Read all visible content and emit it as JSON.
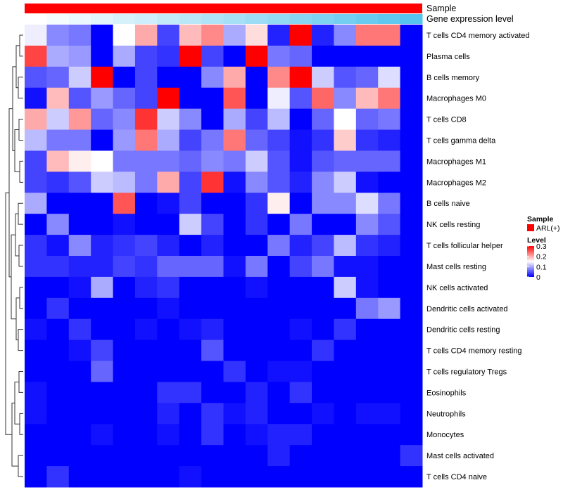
{
  "chart_data": {
    "type": "heatmap",
    "title": "",
    "annotation_bars": [
      {
        "label": "Sample",
        "color": "#ff0000"
      },
      {
        "label": "Gene expression level",
        "color_from": "#ffffff",
        "color_to": "#56c4ee"
      }
    ],
    "rows": [
      "T cells CD4 memory activated",
      "Plasma cells",
      "B cells memory",
      "Macrophages M0",
      "T cells CD8",
      "T cells gamma delta",
      "Macrophages M1",
      "Macrophages M2",
      "B cells naive",
      "NK cells resting",
      "T cells follicular helper",
      "Mast cells resting",
      "NK cells activated",
      "Dendritic cells activated",
      "Dendritic cells resting",
      "T cells CD4 memory resting",
      "T cells regulatory  Tregs",
      "Eosinophils",
      "Neutrophils",
      "Monocytes",
      "Mast cells activated",
      "T cells CD4 naive"
    ],
    "n_columns": 18,
    "values": [
      [
        0.14,
        0.08,
        0.07,
        0.0,
        0.15,
        0.2,
        0.04,
        0.19,
        0.22,
        0.1,
        0.17,
        0.02,
        0.3,
        0.02,
        0.08,
        0.23,
        0.23,
        0.0
      ],
      [
        0.26,
        0.1,
        0.09,
        0.0,
        0.1,
        0.04,
        0.03,
        0.3,
        0.04,
        0.0,
        0.3,
        0.07,
        0.06,
        0.0,
        0.0,
        0.0,
        0.0,
        0.0
      ],
      [
        0.05,
        0.06,
        0.12,
        0.3,
        0.0,
        0.04,
        0.0,
        0.0,
        0.08,
        0.2,
        0.0,
        0.22,
        0.3,
        0.12,
        0.05,
        0.06,
        0.13,
        0.0
      ],
      [
        0.01,
        0.19,
        0.05,
        0.09,
        0.06,
        0.04,
        0.3,
        0.0,
        0.0,
        0.25,
        0.0,
        0.14,
        0.05,
        0.24,
        0.08,
        0.19,
        0.23,
        0.0
      ],
      [
        0.2,
        0.12,
        0.21,
        0.06,
        0.08,
        0.27,
        0.12,
        0.08,
        0.0,
        0.1,
        0.04,
        0.11,
        0.0,
        0.06,
        0.15,
        0.06,
        0.07,
        0.0
      ],
      [
        0.11,
        0.07,
        0.07,
        0.0,
        0.09,
        0.23,
        0.1,
        0.04,
        0.07,
        0.23,
        0.06,
        0.04,
        0.01,
        0.03,
        0.18,
        0.03,
        0.02,
        0.0
      ],
      [
        0.04,
        0.19,
        0.16,
        0.15,
        0.07,
        0.07,
        0.07,
        0.06,
        0.08,
        0.07,
        0.12,
        0.05,
        0.01,
        0.05,
        0.06,
        0.06,
        0.06,
        0.0
      ],
      [
        0.04,
        0.03,
        0.05,
        0.12,
        0.11,
        0.07,
        0.2,
        0.04,
        0.27,
        0.01,
        0.08,
        0.05,
        0.02,
        0.08,
        0.12,
        0.01,
        0.0,
        0.0
      ],
      [
        0.1,
        0.0,
        0.0,
        0.0,
        0.25,
        0.0,
        0.01,
        0.04,
        0.0,
        0.0,
        0.03,
        0.16,
        0.0,
        0.08,
        0.08,
        0.13,
        0.07,
        0.0
      ],
      [
        0.0,
        0.08,
        0.0,
        0.0,
        0.01,
        0.0,
        0.0,
        0.12,
        0.04,
        0.0,
        0.03,
        0.0,
        0.07,
        0.0,
        0.0,
        0.08,
        0.05,
        0.0
      ],
      [
        0.03,
        0.01,
        0.08,
        0.02,
        0.03,
        0.04,
        0.02,
        0.0,
        0.02,
        0.0,
        0.0,
        0.07,
        0.02,
        0.04,
        0.11,
        0.03,
        0.02,
        0.0
      ],
      [
        0.03,
        0.03,
        0.02,
        0.02,
        0.04,
        0.03,
        0.06,
        0.06,
        0.06,
        0.01,
        0.07,
        0.0,
        0.04,
        0.07,
        0.01,
        0.01,
        0.0,
        0.0
      ],
      [
        0.0,
        0.0,
        0.01,
        0.1,
        0.0,
        0.02,
        0.03,
        0.0,
        0.0,
        0.0,
        0.01,
        0.0,
        0.0,
        0.0,
        0.12,
        0.01,
        0.0,
        0.0
      ],
      [
        0.0,
        0.03,
        0.0,
        0.0,
        0.0,
        0.0,
        0.01,
        0.0,
        0.0,
        0.0,
        0.0,
        0.0,
        0.0,
        0.0,
        0.0,
        0.07,
        0.09,
        0.0
      ],
      [
        0.01,
        0.0,
        0.03,
        0.0,
        0.0,
        0.01,
        0.0,
        0.01,
        0.02,
        0.0,
        0.0,
        0.0,
        0.01,
        0.0,
        0.03,
        0.0,
        0.0,
        0.0
      ],
      [
        0.0,
        0.0,
        0.01,
        0.04,
        0.0,
        0.0,
        0.0,
        0.0,
        0.05,
        0.0,
        0.0,
        0.0,
        0.0,
        0.03,
        0.0,
        0.0,
        0.0,
        0.0
      ],
      [
        0.0,
        0.0,
        0.0,
        0.06,
        0.0,
        0.0,
        0.0,
        0.0,
        0.0,
        0.03,
        0.0,
        0.01,
        0.01,
        0.0,
        0.0,
        0.0,
        0.0,
        0.0
      ],
      [
        0.01,
        0.0,
        0.0,
        0.0,
        0.0,
        0.0,
        0.03,
        0.03,
        0.0,
        0.0,
        0.02,
        0.0,
        0.03,
        0.0,
        0.0,
        0.0,
        0.0,
        0.0
      ],
      [
        0.01,
        0.0,
        0.0,
        0.0,
        0.0,
        0.0,
        0.02,
        0.0,
        0.03,
        0.01,
        0.02,
        0.0,
        0.0,
        0.01,
        0.0,
        0.01,
        0.01,
        0.0
      ],
      [
        0.0,
        0.0,
        0.0,
        0.01,
        0.0,
        0.0,
        0.01,
        0.0,
        0.03,
        0.0,
        0.01,
        0.02,
        0.02,
        0.0,
        0.0,
        0.0,
        0.0,
        0.0
      ],
      [
        0.0,
        0.0,
        0.0,
        0.0,
        0.0,
        0.0,
        0.0,
        0.0,
        0.0,
        0.0,
        0.0,
        0.02,
        0.0,
        0.0,
        0.0,
        0.0,
        0.0,
        0.03
      ],
      [
        0.0,
        0.03,
        0.0,
        0.0,
        0.0,
        0.0,
        0.0,
        0.01,
        0.0,
        0.0,
        0.0,
        0.0,
        0.0,
        0.0,
        0.0,
        0.0,
        0.0,
        0.0
      ]
    ],
    "color_scale": {
      "min": 0,
      "max": 0.3,
      "colors": [
        "#0000ff",
        "#ffffff",
        "#ff0000"
      ]
    },
    "legend": {
      "sample_title": "Sample",
      "sample_entry": "ARL(+)",
      "sample_color": "#ff0000",
      "level_title": "Level",
      "level_ticks": [
        "0.3",
        "0.2",
        "0.1",
        "0"
      ],
      "level_tick_values": [
        0.3,
        0.2,
        0.1,
        0
      ]
    },
    "dendrogram": "row",
    "legend_position": "right"
  }
}
